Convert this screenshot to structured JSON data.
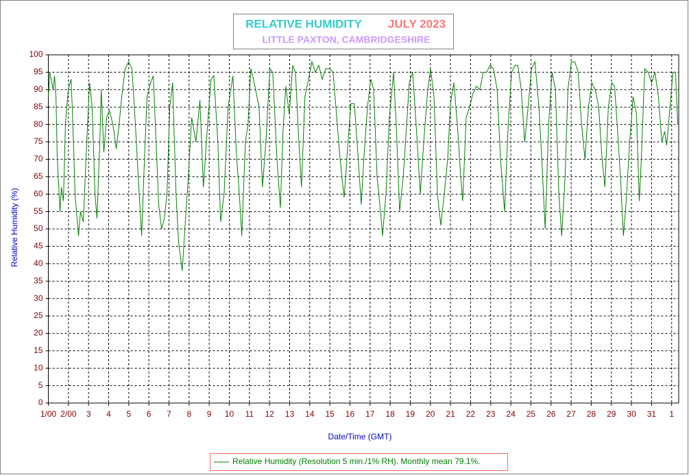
{
  "chart_data": {
    "type": "line",
    "title": "RELATIVE HUMIDITY",
    "period": "JULY 2023",
    "subtitle": "LITTLE PAXTON, CAMBRIDGESHIRE",
    "xlabel": "Date/Time (GMT)",
    "ylabel": "Relative Humidity (%)",
    "xlim": [
      1,
      32.35
    ],
    "ylim": [
      0,
      100
    ],
    "xticks": [
      {
        "value": 1,
        "label": "1/00"
      },
      {
        "value": 2,
        "label": "2/00"
      },
      3,
      4,
      5,
      6,
      7,
      8,
      9,
      10,
      11,
      12,
      13,
      14,
      15,
      16,
      17,
      18,
      19,
      20,
      21,
      22,
      23,
      24,
      25,
      26,
      27,
      28,
      29,
      30,
      31,
      {
        "value": 32,
        "label": "1"
      }
    ],
    "yticks": [
      0,
      5,
      10,
      15,
      20,
      25,
      30,
      35,
      40,
      45,
      50,
      55,
      60,
      65,
      70,
      75,
      80,
      85,
      90,
      95,
      100
    ],
    "grid": true,
    "x": [
      1.0,
      1.07,
      1.24,
      1.31,
      1.38,
      1.44,
      1.58,
      1.65,
      1.75,
      1.85,
      1.99,
      2.13,
      2.19,
      2.33,
      2.5,
      2.6,
      2.74,
      2.91,
      3.05,
      3.18,
      3.32,
      3.42,
      3.56,
      3.63,
      3.76,
      3.9,
      4.04,
      4.21,
      4.38,
      4.52,
      4.65,
      4.82,
      4.99,
      5.16,
      5.33,
      5.47,
      5.64,
      5.78,
      5.91,
      6.09,
      6.22,
      6.36,
      6.49,
      6.63,
      6.77,
      6.9,
      7.04,
      7.18,
      7.35,
      7.48,
      7.66,
      7.79,
      7.93,
      8.13,
      8.34,
      8.54,
      8.71,
      8.92,
      9.09,
      9.23,
      9.43,
      9.57,
      9.74,
      9.94,
      10.18,
      10.35,
      10.52,
      10.62,
      10.8,
      10.93,
      11.07,
      11.2,
      11.48,
      11.65,
      11.82,
      12.02,
      12.16,
      12.37,
      12.54,
      12.67,
      12.81,
      12.98,
      13.15,
      13.29,
      13.46,
      13.59,
      13.76,
      13.94,
      14.11,
      14.28,
      14.45,
      14.62,
      14.79,
      14.99,
      15.16,
      15.3,
      15.51,
      15.71,
      15.88,
      16.05,
      16.22,
      16.39,
      16.56,
      16.7,
      16.87,
      17.04,
      17.18,
      17.35,
      17.52,
      17.62,
      17.79,
      17.96,
      18.17,
      18.3,
      18.47,
      18.65,
      18.82,
      18.95,
      19.12,
      19.29,
      19.5,
      19.67,
      19.87,
      20.01,
      20.18,
      20.35,
      20.52,
      20.69,
      20.86,
      21.0,
      21.17,
      21.34,
      21.51,
      21.61,
      21.78,
      21.95,
      22.12,
      22.29,
      22.46,
      22.63,
      22.8,
      22.97,
      23.14,
      23.32,
      23.49,
      23.69,
      23.87,
      24.04,
      24.21,
      24.35,
      24.52,
      24.69,
      24.86,
      25.03,
      25.2,
      25.4,
      25.54,
      25.71,
      25.88,
      26.05,
      26.22,
      26.39,
      26.53,
      26.7,
      26.84,
      27.01,
      27.18,
      27.35,
      27.52,
      27.69,
      27.86,
      28.03,
      28.2,
      28.37,
      28.54,
      28.68,
      28.85,
      29.02,
      29.16,
      29.29,
      29.46,
      29.6,
      29.74,
      29.91,
      30.08,
      30.25,
      30.39,
      30.49,
      30.66,
      30.83,
      31.0,
      31.17,
      31.34,
      31.51,
      31.65,
      31.75,
      31.92,
      32.06,
      32.19,
      32.3
    ],
    "series": [
      {
        "name": "Relative Humidity (Resolution 5 min./1% RH). Monthly mean 79.1%.",
        "color": "#008000",
        "values": [
          88,
          95,
          90,
          94,
          88,
          71,
          55,
          62,
          58,
          80,
          90,
          93,
          85,
          60,
          48,
          55,
          52,
          75,
          92,
          85,
          60,
          53,
          75,
          90,
          72,
          82,
          84,
          80,
          73,
          80,
          88,
          96,
          98,
          96,
          80,
          65,
          48,
          70,
          88,
          92,
          94,
          75,
          57,
          50,
          53,
          60,
          85,
          92,
          60,
          46,
          38,
          50,
          62,
          82,
          75,
          87,
          62,
          80,
          93,
          94,
          75,
          52,
          60,
          85,
          94,
          72,
          58,
          48,
          75,
          80,
          96,
          93,
          85,
          62,
          75,
          96,
          95,
          70,
          56,
          78,
          91,
          83,
          97,
          95,
          75,
          62,
          88,
          93,
          98,
          95,
          97,
          93,
          96,
          96,
          95,
          85,
          70,
          59,
          73,
          86,
          86,
          72,
          57,
          71,
          85,
          93,
          90,
          65,
          55,
          48,
          60,
          82,
          95,
          80,
          55,
          65,
          80,
          92,
          95,
          80,
          60,
          75,
          90,
          96,
          88,
          60,
          51,
          60,
          70,
          86,
          92,
          80,
          65,
          58,
          82,
          85,
          89,
          91,
          90,
          95,
          95,
          97,
          96,
          90,
          70,
          55,
          80,
          95,
          97,
          97,
          90,
          75,
          85,
          96,
          98,
          85,
          70,
          50,
          80,
          95,
          90,
          60,
          48,
          65,
          90,
          98,
          98,
          95,
          80,
          70,
          85,
          92,
          90,
          85,
          70,
          62,
          85,
          92,
          91,
          80,
          64,
          48,
          58,
          75,
          88,
          83,
          58,
          70,
          96,
          95,
          92,
          95,
          88,
          75,
          78,
          74,
          85,
          95,
          95,
          80
        ]
      }
    ]
  }
}
